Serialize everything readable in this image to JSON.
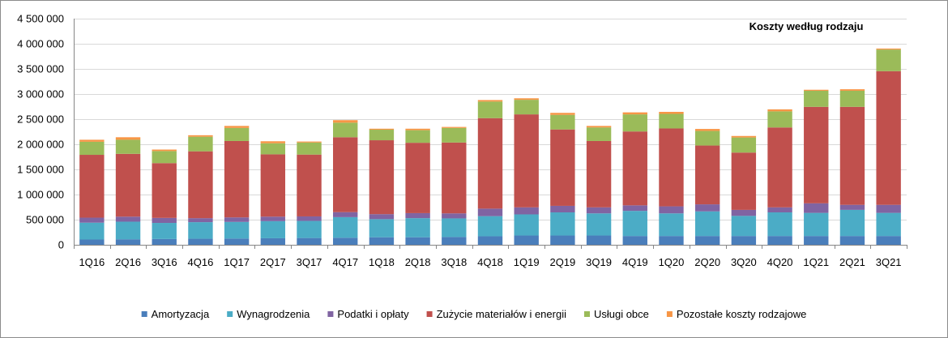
{
  "chart_data": {
    "type": "bar",
    "stacked": true,
    "title": "Koszty według rodzaju",
    "xlabel": "",
    "ylabel": "",
    "ylim": [
      0,
      4500000
    ],
    "yticks": [
      0,
      500000,
      1000000,
      1500000,
      2000000,
      2500000,
      3000000,
      3500000,
      4000000,
      4500000
    ],
    "ytick_labels": [
      "0",
      "500 000",
      "1 000 000",
      "1 500 000",
      "2 000 000",
      "2 500 000",
      "3 000 000",
      "3 500 000",
      "4 000 000",
      "4 500 000"
    ],
    "grid": true,
    "legend_position": "bottom",
    "categories": [
      "1Q16",
      "2Q16",
      "3Q16",
      "4Q16",
      "1Q17",
      "2Q17",
      "3Q17",
      "4Q17",
      "1Q18",
      "2Q18",
      "3Q18",
      "4Q18",
      "1Q19",
      "2Q19",
      "3Q19",
      "4Q19",
      "1Q20",
      "2Q20",
      "3Q20",
      "4Q20",
      "1Q21",
      "2Q21",
      "3Q21"
    ],
    "series": [
      {
        "name": "Amortyzacja",
        "color": "#4a7ebb",
        "values": [
          105000,
          110000,
          115000,
          120000,
          125000,
          130000,
          135000,
          140000,
          150000,
          150000,
          155000,
          170000,
          185000,
          185000,
          185000,
          175000,
          175000,
          175000,
          175000,
          175000,
          175000,
          175000,
          175000
        ]
      },
      {
        "name": "Wynagrodzenia",
        "color": "#4bacc6",
        "values": [
          335000,
          350000,
          320000,
          330000,
          330000,
          340000,
          340000,
          410000,
          360000,
          380000,
          370000,
          400000,
          420000,
          460000,
          440000,
          500000,
          450000,
          490000,
          400000,
          470000,
          460000,
          520000,
          460000
        ]
      },
      {
        "name": "Podatki i opłaty",
        "color": "#8064a2",
        "values": [
          100000,
          100000,
          100000,
          80000,
          90000,
          90000,
          90000,
          100000,
          100000,
          100000,
          100000,
          150000,
          140000,
          130000,
          120000,
          110000,
          140000,
          140000,
          120000,
          100000,
          190000,
          100000,
          160000
        ]
      },
      {
        "name": "Zużycie materiałów i energii",
        "color": "#c0504d",
        "values": [
          1250000,
          1250000,
          1090000,
          1330000,
          1520000,
          1240000,
          1230000,
          1490000,
          1470000,
          1400000,
          1410000,
          1800000,
          1850000,
          1520000,
          1320000,
          1470000,
          1550000,
          1170000,
          1140000,
          1590000,
          1920000,
          1950000,
          2660000
        ]
      },
      {
        "name": "Usługi obce",
        "color": "#9bbb59",
        "values": [
          260000,
          280000,
          240000,
          290000,
          260000,
          220000,
          240000,
          290000,
          210000,
          250000,
          290000,
          330000,
          290000,
          290000,
          270000,
          340000,
          290000,
          290000,
          300000,
          320000,
          320000,
          320000,
          430000
        ]
      },
      {
        "name": "Pozostałe koszty rodzajowe",
        "color": "#f79646",
        "values": [
          40000,
          50000,
          30000,
          30000,
          40000,
          40000,
          20000,
          50000,
          20000,
          30000,
          20000,
          30000,
          30000,
          40000,
          30000,
          40000,
          40000,
          40000,
          30000,
          40000,
          20000,
          30000,
          20000
        ]
      }
    ]
  }
}
